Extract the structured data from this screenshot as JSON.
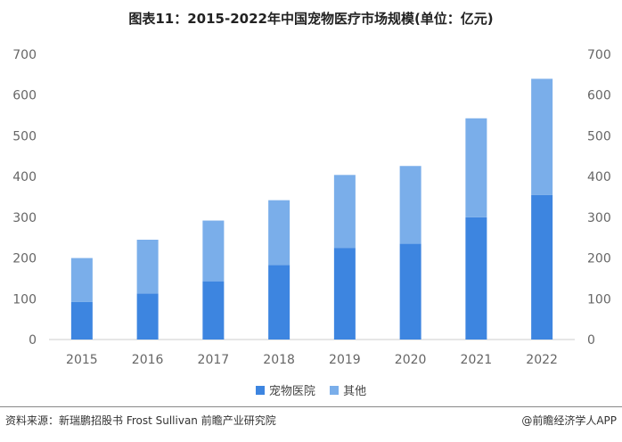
{
  "title": "图表11：2015-2022年中国宠物医疗市场规模(单位：亿元)",
  "source": "资料来源：新瑞鹏招股书 Frost Sullivan 前瞻产业研究院",
  "credit": "@前瞻经济学人APP",
  "colors": {
    "hospital": "#3d85e0",
    "other": "#7aaeea",
    "axis_text": "#666666",
    "axis_line": "#cccccc"
  },
  "chart_data": {
    "type": "bar",
    "stacked": true,
    "categories": [
      "2015",
      "2016",
      "2017",
      "2018",
      "2019",
      "2020",
      "2021",
      "2022"
    ],
    "series": [
      {
        "name": "宠物医院",
        "values": [
          92,
          113,
          143,
          183,
          225,
          235,
          300,
          355
        ]
      },
      {
        "name": "其他",
        "values": [
          108,
          132,
          149,
          159,
          179,
          191,
          243,
          285
        ]
      }
    ],
    "ylim": [
      0,
      700
    ],
    "yticks": [
      0,
      100,
      200,
      300,
      400,
      500,
      600,
      700
    ],
    "dual_axis_labels": true,
    "legend_position": "bottom",
    "grid": false
  }
}
